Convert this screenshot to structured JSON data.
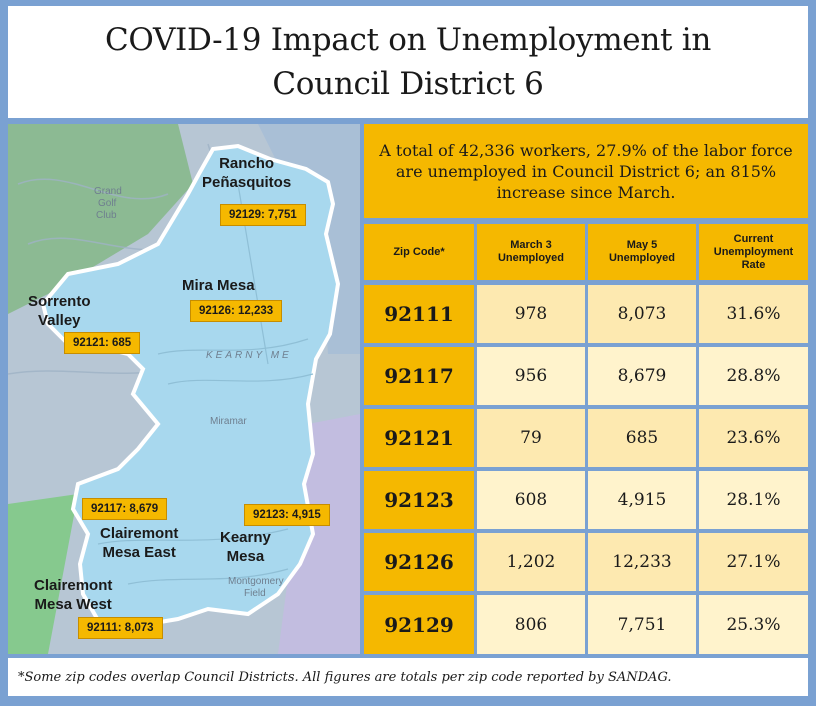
{
  "title": {
    "line1": "COVID-19 Impact on Unemployment in",
    "line2": "Council District 6"
  },
  "summary": "A total of 42,336 workers, 27.9% of the labor force are unemployed in Council District 6; an 815% increase since March.",
  "colors": {
    "gold": "#f5b800",
    "light_cell": "#fde9b0",
    "lighter_cell": "#fff3cc",
    "border_blue": "#7aa1d2",
    "map_district": "#a8d8ee"
  },
  "map": {
    "areas": [
      {
        "name": "Rancho\nPeñasquitos"
      },
      {
        "name": "Mira Mesa"
      },
      {
        "name": "Sorrento\nValley"
      },
      {
        "name": "Clairemont\nMesa East"
      },
      {
        "name": "Kearny\nMesa"
      },
      {
        "name": "Clairemont\nMesa West"
      }
    ],
    "zip_labels": [
      "92129: 7,751",
      "92126: 12,233",
      "92121: 685",
      "92117: 8,679",
      "92123: 4,915",
      "92111: 8,073"
    ],
    "faint_labels": [
      "Grand",
      "Golf",
      "Club",
      "Miramar",
      "KEARNY ME",
      "Montgomery",
      "Field"
    ]
  },
  "table": {
    "headers": [
      "Zip Code*",
      "March 3 Unemployed",
      "May 5 Unemployed",
      "Current Unemployment Rate"
    ],
    "rows": [
      {
        "zip": "92111",
        "march": "978",
        "may": "8,073",
        "rate": "31.6%"
      },
      {
        "zip": "92117",
        "march": "956",
        "may": "8,679",
        "rate": "28.8%"
      },
      {
        "zip": "92121",
        "march": "79",
        "may": "685",
        "rate": "23.6%"
      },
      {
        "zip": "92123",
        "march": "608",
        "may": "4,915",
        "rate": "28.1%"
      },
      {
        "zip": "92126",
        "march": "1,202",
        "may": "12,233",
        "rate": "27.1%"
      },
      {
        "zip": "92129",
        "march": "806",
        "may": "7,751",
        "rate": "25.3%"
      }
    ]
  },
  "footer": "*Some zip codes overlap Council Districts. All figures are totals per zip code reported by SANDAG."
}
